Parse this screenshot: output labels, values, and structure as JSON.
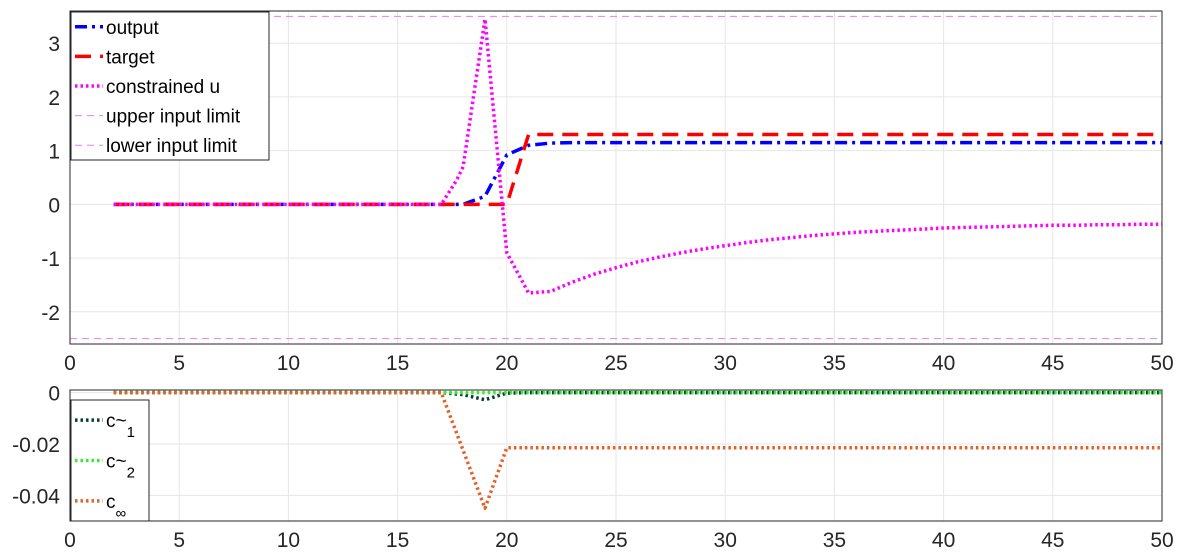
{
  "chart_data": [
    {
      "type": "line",
      "xlim": [
        0,
        50
      ],
      "ylim": [
        -2.6,
        3.6
      ],
      "xticks": [
        0,
        5,
        10,
        15,
        20,
        25,
        30,
        35,
        40,
        45,
        50
      ],
      "yticks": [
        -2,
        -1,
        0,
        1,
        2,
        3
      ],
      "grid": true,
      "legend_position": "top-left",
      "series": [
        {
          "name": "output",
          "color": "#0000ff",
          "style": "dashdot",
          "x": [
            2,
            3,
            4,
            5,
            6,
            7,
            8,
            9,
            10,
            11,
            12,
            13,
            14,
            15,
            16,
            17,
            18,
            19,
            20,
            21,
            22,
            23,
            24,
            25,
            26,
            28,
            30,
            35,
            40,
            45,
            50
          ],
          "y": [
            0,
            0,
            0,
            0,
            0,
            0,
            0,
            0,
            0,
            0,
            0,
            0,
            0,
            0,
            0,
            0,
            0,
            0.15,
            0.92,
            1.1,
            1.14,
            1.15,
            1.15,
            1.15,
            1.15,
            1.15,
            1.15,
            1.15,
            1.15,
            1.15,
            1.15
          ]
        },
        {
          "name": "target",
          "color": "#ff0000",
          "style": "dashed",
          "x": [
            2,
            3,
            4,
            5,
            6,
            7,
            8,
            9,
            10,
            11,
            12,
            13,
            14,
            15,
            16,
            17,
            18,
            19,
            20,
            21,
            22,
            25,
            30,
            35,
            40,
            45,
            50
          ],
          "y": [
            0,
            0,
            0,
            0,
            0,
            0,
            0,
            0,
            0,
            0,
            0,
            0,
            0,
            0,
            0,
            0,
            0,
            0,
            0,
            1.3,
            1.3,
            1.3,
            1.3,
            1.3,
            1.3,
            1.3,
            1.3
          ]
        },
        {
          "name": "constrained u",
          "color": "#ff00ff",
          "style": "dotted",
          "x": [
            2,
            3,
            4,
            5,
            6,
            7,
            8,
            9,
            10,
            11,
            12,
            13,
            14,
            15,
            16,
            17,
            17.7,
            18,
            19,
            20,
            21,
            22,
            23,
            24,
            25,
            26,
            27,
            28,
            29,
            30,
            31,
            32,
            33,
            34,
            35,
            36,
            37,
            38,
            39,
            40,
            41,
            42,
            43,
            44,
            45,
            46,
            47,
            48,
            49,
            50
          ],
          "y": [
            0,
            0,
            0,
            0,
            0,
            0,
            0,
            0,
            0,
            0,
            0,
            0,
            0,
            0,
            0,
            0,
            0.45,
            0.7,
            3.45,
            -0.9,
            -1.65,
            -1.62,
            -1.45,
            -1.3,
            -1.18,
            -1.07,
            -0.98,
            -0.9,
            -0.83,
            -0.77,
            -0.71,
            -0.66,
            -0.62,
            -0.58,
            -0.55,
            -0.52,
            -0.5,
            -0.48,
            -0.46,
            -0.44,
            -0.43,
            -0.42,
            -0.41,
            -0.4,
            -0.39,
            -0.39,
            -0.38,
            -0.38,
            -0.37,
            -0.37
          ]
        },
        {
          "name": "upper input limit",
          "color": "#e87fe8",
          "style": "thin-dashed",
          "x": [
            0,
            50
          ],
          "y": [
            3.5,
            3.5
          ]
        },
        {
          "name": "lower input limit",
          "color": "#e87fe8",
          "style": "thin-dashed",
          "x": [
            0,
            50
          ],
          "y": [
            -2.5,
            -2.5
          ]
        }
      ]
    },
    {
      "type": "line",
      "xlim": [
        0,
        50
      ],
      "ylim": [
        -0.05,
        0.001
      ],
      "xticks": [
        0,
        5,
        10,
        15,
        20,
        25,
        30,
        35,
        40,
        45,
        50
      ],
      "yticks": [
        -0.04,
        -0.02,
        0
      ],
      "grid": true,
      "legend_position": "bottom-left",
      "series": [
        {
          "name": "c~",
          "subscript": "1",
          "color": "#0b3d2e",
          "style": "dotted",
          "x": [
            2,
            17,
            18,
            19,
            20,
            21,
            50
          ],
          "y": [
            0,
            0,
            -0.0008,
            -0.0028,
            -0.0002,
            0,
            0
          ]
        },
        {
          "name": "c~",
          "subscript": "2",
          "color": "#33ee33",
          "style": "dotted",
          "x": [
            2,
            50
          ],
          "y": [
            0,
            0
          ]
        },
        {
          "name": "c",
          "subscript": "∞",
          "color": "#e0622a",
          "style": "dotted",
          "x": [
            2,
            17,
            19,
            20,
            21,
            50
          ],
          "y": [
            0,
            0,
            -0.045,
            -0.0215,
            -0.0215,
            -0.0215
          ]
        }
      ]
    }
  ]
}
